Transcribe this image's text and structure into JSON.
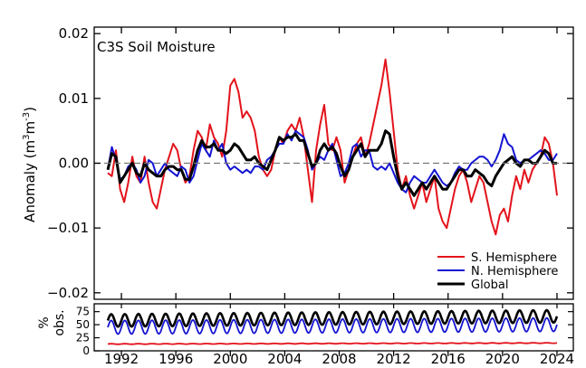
{
  "chart_data": [
    {
      "type": "line",
      "title": "C3S Soil Moisture",
      "ylabel_main": "Anomaly (m",
      "ylabel_sup1": "3",
      "ylabel_mid": "m",
      "ylabel_sup2": "-3",
      "ylabel_end": ")",
      "ylim": [
        -0.021,
        0.021
      ],
      "xlim": [
        1990.0,
        2025.2
      ],
      "yticks": [
        -0.02,
        -0.01,
        0.0,
        0.01,
        0.02
      ],
      "ytick_labels": [
        "−0.02",
        "−0.01",
        "0.00",
        "0.01",
        "0.02"
      ],
      "xticks": [
        1992,
        1996,
        2000,
        2004,
        2008,
        2012,
        2016,
        2020,
        2024
      ],
      "xtick_labels": [
        "1992",
        "1996",
        "2000",
        "2004",
        "2008",
        "2012",
        "2016",
        "2020",
        "2024"
      ],
      "zero_line": true,
      "grid": false,
      "legend_position": "lower-right",
      "series": [
        {
          "name": "S. Hemisphere",
          "color": "#e3131b",
          "x": [
            1991.0,
            1991.3,
            1991.6,
            1991.9,
            1992.2,
            1992.5,
            1992.8,
            1993.1,
            1993.4,
            1993.7,
            1994.0,
            1994.3,
            1994.6,
            1994.9,
            1995.2,
            1995.5,
            1995.8,
            1996.1,
            1996.4,
            1996.7,
            1997.0,
            1997.3,
            1997.6,
            1997.9,
            1998.2,
            1998.5,
            1998.8,
            1999.1,
            1999.4,
            1999.7,
            2000.0,
            2000.3,
            2000.6,
            2000.9,
            2001.2,
            2001.5,
            2001.8,
            2002.1,
            2002.4,
            2002.7,
            2003.0,
            2003.3,
            2003.6,
            2003.9,
            2004.2,
            2004.5,
            2004.8,
            2005.1,
            2005.4,
            2005.7,
            2006.0,
            2006.3,
            2006.6,
            2006.9,
            2007.2,
            2007.5,
            2007.8,
            2008.1,
            2008.4,
            2008.7,
            2009.0,
            2009.3,
            2009.6,
            2009.9,
            2010.2,
            2010.5,
            2010.8,
            2011.1,
            2011.4,
            2011.7,
            2012.0,
            2012.3,
            2012.6,
            2012.9,
            2013.2,
            2013.5,
            2013.8,
            2014.1,
            2014.4,
            2014.7,
            2015.0,
            2015.3,
            2015.6,
            2015.9,
            2016.2,
            2016.5,
            2016.8,
            2017.1,
            2017.4,
            2017.7,
            2018.0,
            2018.3,
            2018.6,
            2018.9,
            2019.2,
            2019.5,
            2019.8,
            2020.1,
            2020.4,
            2020.7,
            2021.0,
            2021.3,
            2021.6,
            2021.9,
            2022.2,
            2022.5,
            2022.8,
            2023.1,
            2023.4,
            2023.7,
            2024.0
          ],
          "y": [
            -0.0015,
            -0.002,
            0.002,
            -0.004,
            -0.006,
            -0.003,
            0.001,
            -0.002,
            -0.003,
            0.001,
            -0.003,
            -0.006,
            -0.007,
            -0.004,
            -0.001,
            0.001,
            0.003,
            0.002,
            -0.001,
            -0.003,
            -0.002,
            0.002,
            0.005,
            0.004,
            0.002,
            0.006,
            0.004,
            0.003,
            0.001,
            0.005,
            0.012,
            0.013,
            0.011,
            0.007,
            0.008,
            0.007,
            0.005,
            0.001,
            -0.001,
            -0.002,
            -0.001,
            0.002,
            0.004,
            0.003,
            0.005,
            0.006,
            0.005,
            0.007,
            0.004,
            -0.001,
            -0.006,
            0.002,
            0.006,
            0.009,
            0.003,
            0.002,
            0.004,
            0.002,
            -0.003,
            -0.001,
            0.001,
            0.003,
            0.004,
            0.001,
            0.003,
            0.006,
            0.009,
            0.012,
            0.016,
            0.011,
            0.005,
            -0.001,
            -0.004,
            -0.002,
            -0.005,
            -0.007,
            -0.005,
            -0.003,
            -0.006,
            -0.004,
            -0.002,
            -0.007,
            -0.009,
            -0.01,
            -0.007,
            -0.004,
            -0.002,
            -0.001,
            -0.003,
            -0.006,
            -0.004,
            -0.002,
            -0.003,
            -0.006,
            -0.009,
            -0.011,
            -0.008,
            -0.007,
            -0.009,
            -0.005,
            -0.002,
            -0.004,
            -0.001,
            -0.003,
            -0.001,
            0.0,
            0.001,
            0.004,
            0.003,
            0.0,
            -0.005
          ]
        },
        {
          "name": "N. Hemisphere",
          "color": "#1414d2",
          "x": [
            1991.0,
            1991.3,
            1991.6,
            1991.9,
            1992.2,
            1992.5,
            1992.8,
            1993.1,
            1993.4,
            1993.7,
            1994.0,
            1994.3,
            1994.6,
            1994.9,
            1995.2,
            1995.5,
            1995.8,
            1996.1,
            1996.4,
            1996.7,
            1997.0,
            1997.3,
            1997.6,
            1997.9,
            1998.2,
            1998.5,
            1998.8,
            1999.1,
            1999.4,
            1999.7,
            2000.0,
            2000.3,
            2000.6,
            2000.9,
            2001.2,
            2001.5,
            2001.8,
            2002.1,
            2002.4,
            2002.7,
            2003.0,
            2003.3,
            2003.6,
            2003.9,
            2004.2,
            2004.5,
            2004.8,
            2005.1,
            2005.4,
            2005.7,
            2006.0,
            2006.3,
            2006.6,
            2006.9,
            2007.2,
            2007.5,
            2007.8,
            2008.1,
            2008.4,
            2008.7,
            2009.0,
            2009.3,
            2009.6,
            2009.9,
            2010.2,
            2010.5,
            2010.8,
            2011.1,
            2011.4,
            2011.7,
            2012.0,
            2012.3,
            2012.6,
            2012.9,
            2013.2,
            2013.5,
            2013.8,
            2014.1,
            2014.4,
            2014.7,
            2015.0,
            2015.3,
            2015.6,
            2015.9,
            2016.2,
            2016.5,
            2016.8,
            2017.1,
            2017.4,
            2017.7,
            2018.0,
            2018.3,
            2018.6,
            2018.9,
            2019.2,
            2019.5,
            2019.8,
            2020.1,
            2020.4,
            2020.7,
            2021.0,
            2021.3,
            2021.6,
            2021.9,
            2022.2,
            2022.5,
            2022.8,
            2023.1,
            2023.4,
            2023.7,
            2024.0
          ],
          "y": [
            -0.001,
            0.0025,
            0.0005,
            -0.0025,
            -0.002,
            -0.0005,
            0.0,
            -0.001,
            -0.003,
            -0.002,
            0.0005,
            0.0,
            -0.002,
            -0.001,
            0.0,
            -0.001,
            -0.0015,
            -0.002,
            -0.0005,
            -0.001,
            -0.003,
            -0.002,
            0.0005,
            0.003,
            0.002,
            0.001,
            0.0035,
            0.002,
            0.003,
            0.0,
            -0.001,
            -0.0005,
            -0.001,
            -0.0015,
            -0.001,
            -0.0015,
            -0.0005,
            -0.0005,
            -0.001,
            0.0005,
            0.001,
            0.002,
            0.003,
            0.003,
            0.0045,
            0.0035,
            0.005,
            0.0045,
            0.004,
            0.002,
            -0.001,
            0.0,
            0.001,
            0.0005,
            0.002,
            0.003,
            0.0005,
            -0.002,
            -0.0015,
            0.0,
            0.0025,
            0.003,
            0.001,
            0.002,
            0.002,
            -0.0005,
            -0.001,
            -0.0005,
            -0.001,
            0.0,
            -0.0015,
            -0.003,
            -0.004,
            -0.0045,
            -0.003,
            -0.002,
            -0.0025,
            -0.003,
            -0.003,
            -0.002,
            -0.001,
            -0.002,
            -0.003,
            -0.0035,
            -0.003,
            -0.0015,
            -0.0005,
            -0.001,
            -0.001,
            0.0,
            0.0005,
            0.001,
            0.001,
            0.0005,
            -0.0005,
            0.0005,
            0.002,
            0.0045,
            0.003,
            0.0025,
            0.0005,
            0.0,
            0.0005,
            0.0005,
            0.001,
            0.0015,
            0.002,
            0.0015,
            0.0005,
            0.0005,
            0.0015
          ]
        },
        {
          "name": "Global",
          "color": "#000000",
          "x": [
            1991.0,
            1991.3,
            1991.6,
            1991.9,
            1992.2,
            1992.5,
            1992.8,
            1993.1,
            1993.4,
            1993.7,
            1994.0,
            1994.3,
            1994.6,
            1994.9,
            1995.2,
            1995.5,
            1995.8,
            1996.1,
            1996.4,
            1996.7,
            1997.0,
            1997.3,
            1997.6,
            1997.9,
            1998.2,
            1998.5,
            1998.8,
            1999.1,
            1999.4,
            1999.7,
            2000.0,
            2000.3,
            2000.6,
            2000.9,
            2001.2,
            2001.5,
            2001.8,
            2002.1,
            2002.4,
            2002.7,
            2003.0,
            2003.3,
            2003.6,
            2003.9,
            2004.2,
            2004.5,
            2004.8,
            2005.1,
            2005.4,
            2005.7,
            2006.0,
            2006.3,
            2006.6,
            2006.9,
            2007.2,
            2007.5,
            2007.8,
            2008.1,
            2008.4,
            2008.7,
            2009.0,
            2009.3,
            2009.6,
            2009.9,
            2010.2,
            2010.5,
            2010.8,
            2011.1,
            2011.4,
            2011.7,
            2012.0,
            2012.3,
            2012.6,
            2012.9,
            2013.2,
            2013.5,
            2013.8,
            2014.1,
            2014.4,
            2014.7,
            2015.0,
            2015.3,
            2015.6,
            2015.9,
            2016.2,
            2016.5,
            2016.8,
            2017.1,
            2017.4,
            2017.7,
            2018.0,
            2018.3,
            2018.6,
            2018.9,
            2019.2,
            2019.5,
            2019.8,
            2020.1,
            2020.4,
            2020.7,
            2021.0,
            2021.3,
            2021.6,
            2021.9,
            2022.2,
            2022.5,
            2022.8,
            2023.1,
            2023.4,
            2023.7,
            2024.0
          ],
          "y": [
            -0.001,
            0.0015,
            0.001,
            -0.003,
            -0.002,
            -0.001,
            0.0,
            -0.0015,
            -0.002,
            0.0,
            -0.001,
            -0.0015,
            -0.002,
            -0.002,
            -0.001,
            -0.0005,
            -0.0005,
            -0.001,
            -0.001,
            -0.0025,
            -0.0025,
            -0.0005,
            0.002,
            0.0035,
            0.0025,
            0.0025,
            0.003,
            0.002,
            0.002,
            0.0015,
            0.002,
            0.003,
            0.0025,
            0.0015,
            0.0005,
            0.0005,
            0.001,
            0.0,
            -0.0005,
            -0.001,
            0.0005,
            0.002,
            0.004,
            0.0035,
            0.004,
            0.004,
            0.0045,
            0.0035,
            0.0035,
            0.0015,
            -0.0005,
            0.0,
            0.002,
            0.003,
            0.002,
            0.0025,
            0.0015,
            -0.0005,
            -0.002,
            -0.001,
            0.001,
            0.002,
            0.003,
            0.001,
            0.002,
            0.002,
            0.002,
            0.003,
            0.005,
            0.0045,
            0.001,
            -0.002,
            -0.004,
            -0.003,
            -0.004,
            -0.005,
            -0.004,
            -0.003,
            -0.004,
            -0.003,
            -0.002,
            -0.003,
            -0.004,
            -0.004,
            -0.003,
            -0.002,
            -0.001,
            -0.001,
            -0.002,
            -0.002,
            -0.001,
            -0.0015,
            -0.002,
            -0.003,
            -0.0035,
            -0.002,
            -0.001,
            0.0,
            0.0005,
            0.001,
            0.0,
            -0.0005,
            0.0005,
            0.0005,
            0.0,
            0.0,
            0.001,
            0.002,
            0.0015,
            0.0,
            0.0
          ]
        }
      ]
    },
    {
      "type": "line",
      "ylabel_line1": "%",
      "ylabel_line2": "obs.",
      "ylim": [
        0,
        90
      ],
      "yticks": [
        0,
        25,
        50,
        75
      ],
      "ytick_labels": [
        "0",
        "25",
        "50",
        "75"
      ],
      "xlim": [
        1990.0,
        2025.2
      ],
      "xticks": [
        1992,
        1996,
        2000,
        2004,
        2008,
        2012,
        2016,
        2020,
        2024
      ],
      "xtick_labels": [
        "1992",
        "1996",
        "2000",
        "2004",
        "2008",
        "2012",
        "2016",
        "2020",
        "2024"
      ],
      "series": [
        {
          "name": "S. Hemisphere",
          "color": "#e3131b",
          "periodic": {
            "start": 1991.0,
            "end": 2024.0,
            "period": 1.0,
            "base": 13,
            "amplitude": 0.5,
            "trend": 2
          }
        },
        {
          "name": "N. Hemisphere",
          "color": "#1414d2",
          "periodic": {
            "start": 1991.0,
            "end": 2024.0,
            "period": 1.0,
            "base": 45,
            "amplitude": 13,
            "trend": 5
          }
        },
        {
          "name": "Global",
          "color": "#000000",
          "periodic": {
            "start": 1991.0,
            "end": 2024.0,
            "period": 1.0,
            "base": 58,
            "amplitude": 12,
            "trend": 8
          }
        }
      ]
    }
  ]
}
